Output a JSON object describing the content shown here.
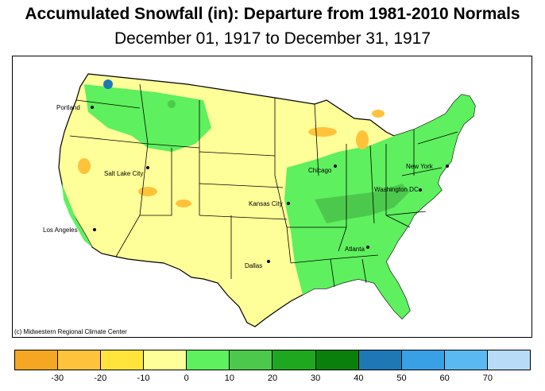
{
  "title": "Accumulated Snowfall (in): Departure from 1981-2010 Normals",
  "subtitle": "December 01, 1917 to December 31, 1917",
  "credit": "(c) Midwestern Regional Climate Center",
  "cities": [
    {
      "name": "Portland"
    },
    {
      "name": "Salt Lake City"
    },
    {
      "name": "Los Angeles"
    },
    {
      "name": "Kansas City"
    },
    {
      "name": "Dallas"
    },
    {
      "name": "Chicago"
    },
    {
      "name": "Atlanta"
    },
    {
      "name": "Washington DC"
    },
    {
      "name": "New York"
    }
  ],
  "legend": {
    "colors": [
      "#f5a623",
      "#ffc33b",
      "#ffe53b",
      "#ffff99",
      "#5ef05e",
      "#4cc94c",
      "#1fa81f",
      "#0b7f0b",
      "#1f78b4",
      "#3aa0e6",
      "#5ab9f0",
      "#b8dcf8"
    ],
    "ticks": [
      "-30",
      "-20",
      "-10",
      "0",
      "10",
      "20",
      "30",
      "40",
      "50",
      "60",
      "70"
    ]
  }
}
